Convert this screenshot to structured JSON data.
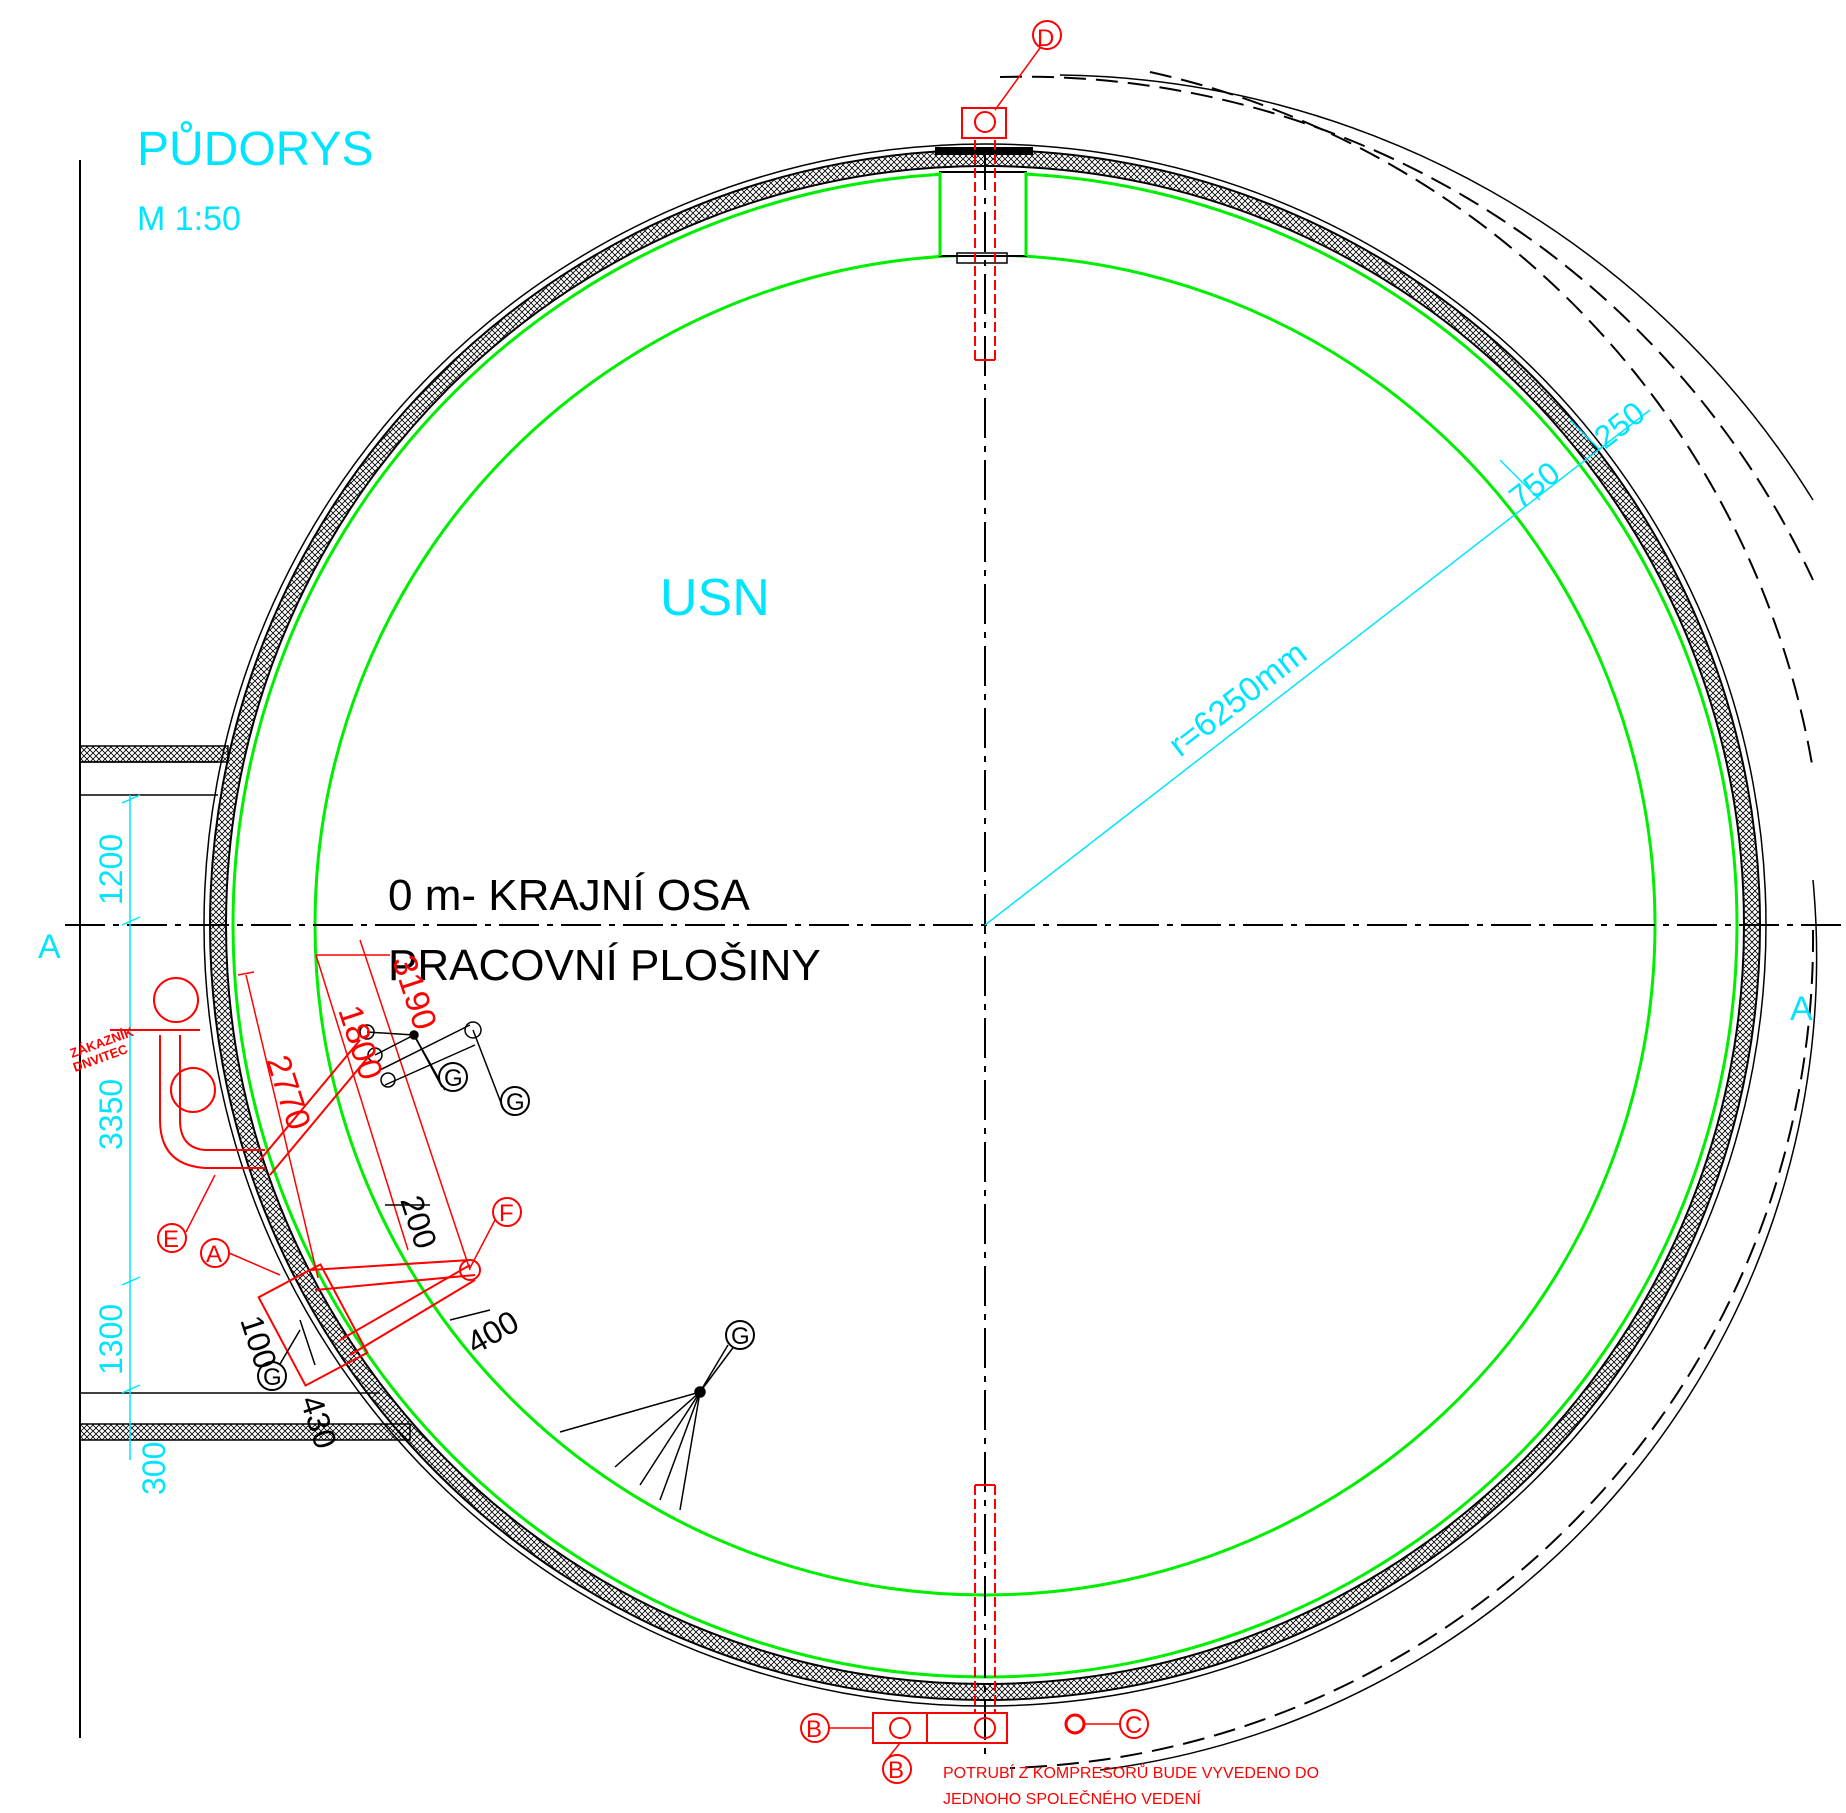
{
  "title": "PŮDORYS",
  "scale": "M 1:50",
  "tank_label": "USN",
  "radius_label": "r=6250mm",
  "section_mark": "A",
  "axis_note": {
    "line1": "0 m- KRAJNÍ OSA",
    "line2": "PRACOVNÍ PLOŠINY"
  },
  "dims": {
    "d750": "750",
    "d250": "250",
    "d1200": "1200",
    "d3350": "3350",
    "d1300": "1300",
    "d300": "300",
    "d2770": "2770",
    "d1800": "1800",
    "d3190": "3190",
    "d200": "200",
    "d400": "400",
    "d100": "100",
    "d430": "430"
  },
  "markers": {
    "A": "A",
    "B": "B",
    "C": "C",
    "D": "D",
    "E": "E",
    "F": "F",
    "G": "G"
  },
  "pipe_label": {
    "line1": "ZÁKAZNÍK",
    "line2": "DNVITEC"
  },
  "note": {
    "line1": "POTRUBÍ Z KOMPRESORŮ BUDE VYVEDENO DO",
    "line2": "JEDNOHO SPOLEČNÉHO VEDENÍ"
  },
  "colors": {
    "annotation_cyan": "#00e5ff",
    "pipework_red": "#ff0000",
    "inner_wall_green": "#00ee00",
    "structure_black": "#000000"
  }
}
